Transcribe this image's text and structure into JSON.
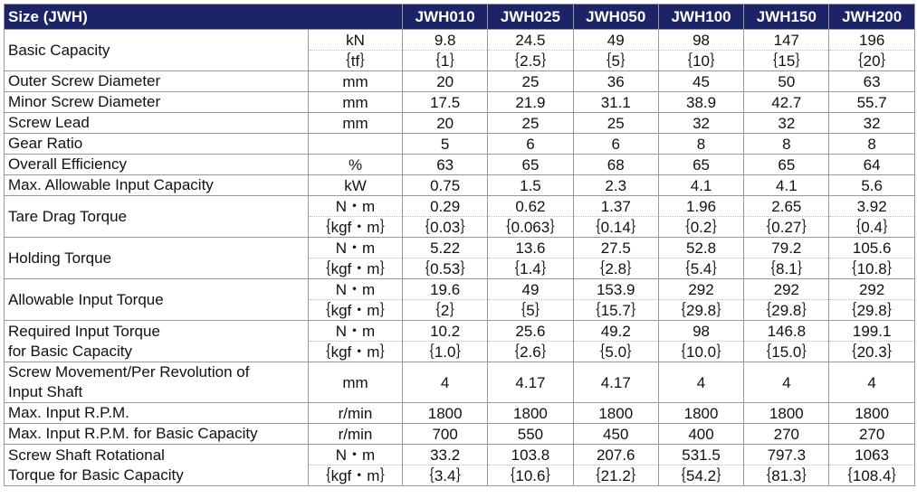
{
  "header": {
    "size_label": "Size (JWH)",
    "models": [
      "JWH010",
      "JWH025",
      "JWH050",
      "JWH100",
      "JWH150",
      "JWH200"
    ]
  },
  "rows": [
    {
      "label": [
        "Basic Capacity"
      ],
      "lines": [
        {
          "unit": "kN",
          "values": [
            "9.8",
            "24.5",
            "49",
            "98",
            "147",
            "196"
          ]
        },
        {
          "unit": "｛tf｝",
          "values": [
            "｛1｝",
            "｛2.5｝",
            "｛5｝",
            "｛10｝",
            "｛15｝",
            "｛20｝"
          ]
        }
      ]
    },
    {
      "label": [
        "Outer Screw Diameter"
      ],
      "lines": [
        {
          "unit": "mm",
          "values": [
            "20",
            "25",
            "36",
            "45",
            "50",
            "63"
          ]
        }
      ]
    },
    {
      "label": [
        "Minor Screw Diameter"
      ],
      "lines": [
        {
          "unit": "mm",
          "values": [
            "17.5",
            "21.9",
            "31.1",
            "38.9",
            "42.7",
            "55.7"
          ]
        }
      ]
    },
    {
      "label": [
        "Screw Lead"
      ],
      "lines": [
        {
          "unit": "mm",
          "values": [
            "20",
            "25",
            "25",
            "32",
            "32",
            "32"
          ]
        }
      ]
    },
    {
      "label": [
        "Gear Ratio"
      ],
      "lines": [
        {
          "unit": "",
          "values": [
            "5",
            "6",
            "6",
            "8",
            "8",
            "8"
          ]
        }
      ]
    },
    {
      "label": [
        "Overall Efficiency"
      ],
      "lines": [
        {
          "unit": "%",
          "values": [
            "63",
            "65",
            "68",
            "65",
            "65",
            "64"
          ]
        }
      ]
    },
    {
      "label": [
        "Max. Allowable Input Capacity"
      ],
      "lines": [
        {
          "unit": "kW",
          "values": [
            "0.75",
            "1.5",
            "2.3",
            "4.1",
            "4.1",
            "5.6"
          ]
        }
      ]
    },
    {
      "label": [
        "Tare Drag Torque"
      ],
      "lines": [
        {
          "unit": "N・m",
          "values": [
            "0.29",
            "0.62",
            "1.37",
            "1.96",
            "2.65",
            "3.92"
          ]
        },
        {
          "unit": "｛kgf・m｝",
          "values": [
            "｛0.03｝",
            "｛0.063｝",
            "｛0.14｝",
            "｛0.2｝",
            "｛0.27｝",
            "｛0.4｝"
          ]
        }
      ]
    },
    {
      "label": [
        "Holding Torque"
      ],
      "lines": [
        {
          "unit": "N・m",
          "values": [
            "5.22",
            "13.6",
            "27.5",
            "52.8",
            "79.2",
            "105.6"
          ]
        },
        {
          "unit": "｛kgf・m｝",
          "values": [
            "｛0.53｝",
            "｛1.4｝",
            "｛2.8｝",
            "｛5.4｝",
            "｛8.1｝",
            "｛10.8｝"
          ]
        }
      ]
    },
    {
      "label": [
        "Allowable Input Torque"
      ],
      "lines": [
        {
          "unit": "N・m",
          "values": [
            "19.6",
            "49",
            "153.9",
            "292",
            "292",
            "292"
          ]
        },
        {
          "unit": "｛kgf・m｝",
          "values": [
            "｛2｝",
            "｛5｝",
            "｛15.7｝",
            "｛29.8｝",
            "｛29.8｝",
            "｛29.8｝"
          ]
        }
      ]
    },
    {
      "label": [
        "Required Input Torque",
        "for Basic Capacity"
      ],
      "lines": [
        {
          "unit": "N・m",
          "values": [
            "10.2",
            "25.6",
            "49.2",
            "98",
            "146.8",
            "199.1"
          ]
        },
        {
          "unit": "｛kgf・m｝",
          "values": [
            "｛1.0｝",
            "｛2.6｝",
            "｛5.0｝",
            "｛10.0｝",
            "｛15.0｝",
            "｛20.3｝"
          ]
        }
      ]
    },
    {
      "label": [
        "Screw Movement/Per Revolution of",
        "Input Shaft"
      ],
      "lines": [
        {
          "unit": "mm",
          "values": [
            "4",
            "4.17",
            "4.17",
            "4",
            "4",
            "4"
          ]
        }
      ]
    },
    {
      "label": [
        "Max. Input R.P.M."
      ],
      "lines": [
        {
          "unit": "r/min",
          "values": [
            "1800",
            "1800",
            "1800",
            "1800",
            "1800",
            "1800"
          ]
        }
      ]
    },
    {
      "label": [
        "Max. Input R.P.M. for Basic Capacity"
      ],
      "lines": [
        {
          "unit": "r/min",
          "values": [
            "700",
            "550",
            "450",
            "400",
            "270",
            "270"
          ]
        }
      ]
    },
    {
      "label": [
        "Screw Shaft Rotational",
        "Torque for Basic Capacity"
      ],
      "lines": [
        {
          "unit": "N・m",
          "values": [
            "33.2",
            "103.8",
            "207.6",
            "531.5",
            "797.3",
            "1063"
          ]
        },
        {
          "unit": "｛kgf・m｝",
          "values": [
            "｛3.4｝",
            "｛10.6｝",
            "｛21.2｝",
            "｛54.2｝",
            "｛81.3｝",
            "｛108.4｝"
          ]
        }
      ]
    }
  ]
}
